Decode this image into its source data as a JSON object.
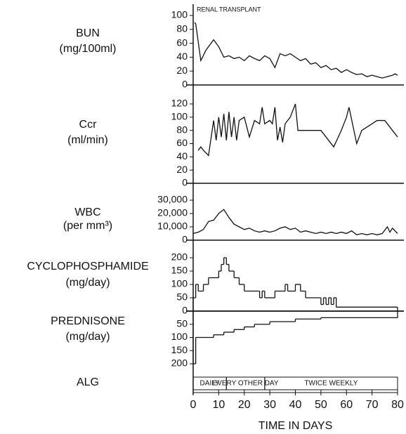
{
  "chart_data": [
    {
      "type": "line",
      "title": "BUN",
      "subtitle": "(mg/100ml)",
      "annotation": "RENAL TRANSPLANT",
      "x": [
        0.5,
        1,
        3,
        5,
        8,
        10,
        12,
        14,
        16,
        18,
        20,
        22,
        24,
        26,
        28,
        30,
        32,
        34,
        36,
        38,
        40,
        42,
        44,
        46,
        48,
        50,
        52,
        54,
        56,
        58,
        60,
        62,
        64,
        66,
        68,
        70,
        72,
        74,
        76,
        78,
        79,
        80
      ],
      "values": [
        90,
        88,
        35,
        50,
        65,
        55,
        40,
        42,
        38,
        40,
        35,
        42,
        38,
        35,
        42,
        38,
        25,
        45,
        42,
        45,
        40,
        35,
        38,
        30,
        32,
        25,
        28,
        22,
        24,
        18,
        22,
        18,
        15,
        16,
        12,
        14,
        12,
        10,
        12,
        14,
        16,
        14
      ],
      "xlim": [
        0,
        80
      ],
      "ylim": [
        0,
        100
      ],
      "yticks": [
        0,
        20,
        40,
        60,
        80,
        100
      ]
    },
    {
      "type": "line",
      "title": "Ccr",
      "subtitle": "(ml/min)",
      "x": [
        2,
        3,
        4,
        6,
        8,
        9,
        10,
        11,
        12,
        13,
        14,
        15,
        16,
        17,
        18,
        20,
        22,
        24,
        26,
        27,
        28,
        30,
        31,
        32,
        33,
        34,
        35,
        36,
        38,
        40,
        41,
        50,
        52,
        53,
        55,
        58,
        60,
        61,
        64,
        66,
        72,
        75,
        80
      ],
      "values": [
        50,
        55,
        50,
        42,
        95,
        65,
        100,
        70,
        105,
        65,
        108,
        70,
        100,
        65,
        95,
        100,
        70,
        95,
        90,
        115,
        90,
        95,
        90,
        115,
        65,
        85,
        62,
        90,
        100,
        120,
        80,
        80,
        70,
        65,
        55,
        80,
        100,
        115,
        60,
        80,
        95,
        95,
        70
      ],
      "xlim": [
        0,
        80
      ],
      "ylim": [
        0,
        120
      ],
      "yticks": [
        0,
        20,
        40,
        60,
        80,
        100,
        120
      ]
    },
    {
      "type": "line",
      "title": "WBC",
      "subtitle": "(per mm³)",
      "x": [
        0,
        2,
        4,
        6,
        8,
        10,
        12,
        14,
        16,
        18,
        20,
        22,
        24,
        26,
        28,
        30,
        32,
        34,
        36,
        38,
        40,
        42,
        44,
        46,
        48,
        50,
        52,
        54,
        56,
        58,
        60,
        62,
        64,
        66,
        68,
        70,
        72,
        74,
        76,
        77,
        78,
        80
      ],
      "values": [
        5000,
        6000,
        8000,
        14000,
        15000,
        20000,
        23000,
        17000,
        12000,
        10000,
        8000,
        9000,
        7000,
        6000,
        7000,
        6000,
        7000,
        9000,
        10000,
        8000,
        9000,
        6000,
        7000,
        6000,
        5000,
        6000,
        5000,
        6000,
        5000,
        6000,
        5000,
        7000,
        4000,
        5000,
        4000,
        5000,
        4000,
        5000,
        10000,
        6000,
        9000,
        5000
      ],
      "xlim": [
        0,
        80
      ],
      "ylim": [
        0,
        30000
      ],
      "yticks": [
        0,
        {
          "value": 10000,
          "label": "10,000"
        },
        {
          "value": 20000,
          "label": "20,000"
        },
        {
          "value": 30000,
          "label": "30,000"
        }
      ]
    },
    {
      "type": "step",
      "title": "CYCLOPHOSPHAMIDE",
      "subtitle": "(mg/day)",
      "x": [
        0,
        1,
        2,
        4,
        6,
        10,
        11,
        12,
        13,
        14,
        16,
        18,
        20,
        26,
        27,
        28,
        32,
        36,
        37,
        40,
        42,
        44,
        50,
        51,
        52,
        53,
        54,
        55,
        56
      ],
      "values": [
        50,
        100,
        75,
        100,
        125,
        150,
        175,
        200,
        175,
        150,
        125,
        100,
        75,
        50,
        75,
        50,
        75,
        100,
        75,
        100,
        75,
        50,
        25,
        50,
        25,
        50,
        25,
        50,
        15
      ],
      "xlim": [
        0,
        80
      ],
      "ylim": [
        0,
        200
      ],
      "yticks": [
        0,
        50,
        100,
        150,
        200
      ]
    },
    {
      "type": "step",
      "title": "PREDNISONE",
      "subtitle": "(mg/day)",
      "inverted": true,
      "x": [
        0,
        1,
        8,
        12,
        16,
        20,
        24,
        30,
        40,
        50
      ],
      "values": [
        200,
        100,
        90,
        80,
        70,
        60,
        50,
        40,
        30,
        25
      ],
      "xlim": [
        0,
        80
      ],
      "ylim": [
        0,
        200
      ],
      "yticks": [
        50,
        100,
        150,
        200
      ]
    },
    {
      "type": "timeline",
      "title": "ALG",
      "segments": [
        {
          "label": "DAILY",
          "start": 0,
          "end": 13
        },
        {
          "label": "EVERY OTHER DAY",
          "start": 13,
          "end": 28
        },
        {
          "label": "TWICE WEEKLY",
          "start": 28,
          "end": 80
        }
      ],
      "xlim": [
        0,
        80
      ],
      "xticks": [
        0,
        10,
        20,
        30,
        40,
        50,
        60,
        70,
        80
      ],
      "xlabel": "TIME IN DAYS"
    }
  ]
}
